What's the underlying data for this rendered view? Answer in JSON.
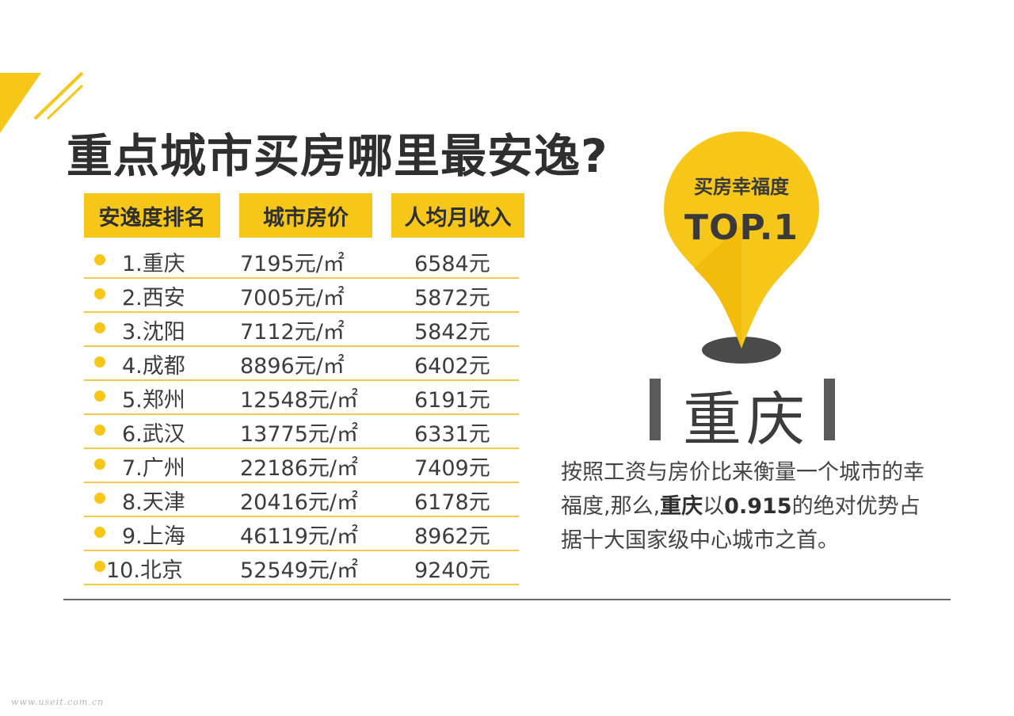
{
  "title": "重点城市买房哪里最安逸?",
  "headers": [
    "安逸度排名",
    "城市房价",
    "人均月收入"
  ],
  "rows": [
    {
      "city": "1.重庆",
      "price": "7195元/㎡",
      "income": "6584元"
    },
    {
      "city": "2.西安",
      "price": "7005元/㎡",
      "income": "5872元"
    },
    {
      "city": "3.沈阳",
      "price": "7112元/㎡",
      "income": "5842元"
    },
    {
      "city": "4.成都",
      "price": "8896元/㎡",
      "income": "6402元"
    },
    {
      "city": "5.郑州",
      "price": "12548元/㎡",
      "income": "6191元"
    },
    {
      "city": "6.武汉",
      "price": "13775元/㎡",
      "income": "6331元"
    },
    {
      "city": "7.广州",
      "price": "22186元/㎡",
      "income": "7409元"
    },
    {
      "city": "8.天津",
      "price": "20416元/㎡",
      "income": "6178元"
    },
    {
      "city": "9.上海",
      "price": "46119元/㎡",
      "income": "8962元"
    },
    {
      "city": "10.北京",
      "price": "52549元/㎡",
      "income": "9240元"
    }
  ],
  "pin": {
    "line1": "买房幸福度",
    "line2": "TOP.1"
  },
  "top_city": "重庆",
  "description": {
    "part1": "按照工资与房价比来衡量一个城市的幸福度,那么,",
    "highlight_city": "重庆",
    "part2": "以",
    "highlight_value": "0.915",
    "part3": "的绝对优势占据十大国家级中心城市之首。"
  },
  "watermark": "www.useit.com.cn",
  "colors": {
    "accent": "#f6c618",
    "accent_dark": "#f0b400",
    "text": "#3c3c3c",
    "bar": "#5a5a5a"
  }
}
